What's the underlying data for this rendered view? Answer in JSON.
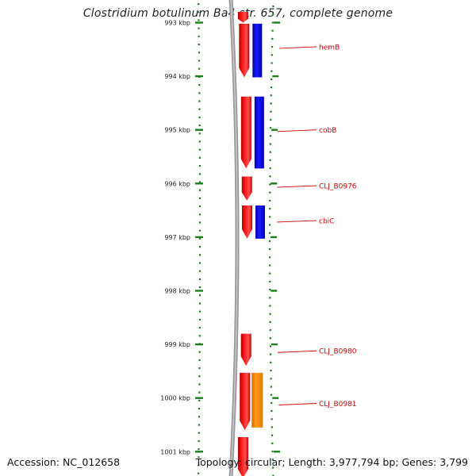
{
  "title": "Clostridium botulinum Ba4 str. 657, complete genome",
  "footer": {
    "accession_label": "Accession:",
    "accession": "NC_012658",
    "topology_label": "Topology:",
    "topology": "circular",
    "length_label": "Length:",
    "length": "3,977,794 bp",
    "genes_label": "Genes:",
    "genes": "3,799"
  },
  "colors": {
    "forward_cds": "#ff1a1a",
    "reverse_cds": "#1a1aff",
    "other_feature": "#ff8c00",
    "backbone": "#808080",
    "ticks": "#1a7f1a",
    "gene_label": "#cc0000",
    "scale_text": "#222222"
  },
  "scale": {
    "unit": "kbp",
    "ticks": [
      {
        "label": "993 kbp",
        "kb": 993
      },
      {
        "label": "994 kbp",
        "kb": 994
      },
      {
        "label": "995 kbp",
        "kb": 995
      },
      {
        "label": "996 kbp",
        "kb": 996
      },
      {
        "label": "997 kbp",
        "kb": 997
      },
      {
        "label": "998 kbp",
        "kb": 998
      },
      {
        "label": "999 kbp",
        "kb": 999
      },
      {
        "label": "1000 kbp",
        "kb": 1000
      },
      {
        "label": "1001 kbp",
        "kb": 1001
      }
    ]
  },
  "features": [
    {
      "track": "red",
      "start_kb": 992.8,
      "end_kb": 993.0,
      "strand": "forward"
    },
    {
      "track": "red",
      "start_kb": 993.02,
      "end_kb": 994.02,
      "strand": "forward"
    },
    {
      "track": "blue",
      "start_kb": 993.02,
      "end_kb": 994.02,
      "strand": "forward"
    },
    {
      "track": "red",
      "start_kb": 994.38,
      "end_kb": 995.72,
      "strand": "forward"
    },
    {
      "track": "blue",
      "start_kb": 994.38,
      "end_kb": 995.72,
      "strand": "forward"
    },
    {
      "track": "red",
      "start_kb": 995.87,
      "end_kb": 996.32,
      "strand": "forward"
    },
    {
      "track": "red",
      "start_kb": 996.41,
      "end_kb": 997.03,
      "strand": "forward"
    },
    {
      "track": "blue",
      "start_kb": 996.41,
      "end_kb": 997.03,
      "strand": "forward"
    },
    {
      "track": "red",
      "start_kb": 998.8,
      "end_kb": 999.4,
      "strand": "forward"
    },
    {
      "track": "red",
      "start_kb": 999.53,
      "end_kb": 1000.6,
      "strand": "forward"
    },
    {
      "track": "orange",
      "start_kb": 999.53,
      "end_kb": 1000.55,
      "strand": "forward"
    },
    {
      "track": "red",
      "start_kb": 1000.73,
      "end_kb": 1001.5,
      "strand": "forward"
    }
  ],
  "gene_labels": [
    {
      "name": "hemB",
      "kb": 993.48
    },
    {
      "name": "cobB",
      "kb": 995.03
    },
    {
      "name": "CLJ_B0976",
      "kb": 996.07
    },
    {
      "name": "cbiC",
      "kb": 996.72
    },
    {
      "name": "CLJ_B0980",
      "kb": 999.15
    },
    {
      "name": "CLJ_B0981",
      "kb": 1000.13
    }
  ]
}
